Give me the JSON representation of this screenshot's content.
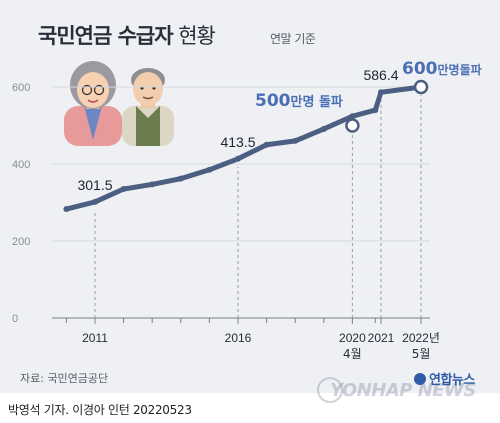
{
  "header": {
    "title_bold": "국민연금 수급자",
    "title_thin": " 현황",
    "subtitle": "연말 기준"
  },
  "footer": {
    "source": "자료: 국민연금공단",
    "credit": "박영석 기자. 이경아 인턴  20220523",
    "logo": "연합뉴스",
    "watermark": "YONHAP NEWS"
  },
  "chart_data": {
    "type": "line",
    "title": "국민연금 수급자 현황",
    "subtitle": "연말 기준",
    "xlabel": "",
    "ylabel": "",
    "ylim": [
      0,
      640
    ],
    "yticks": [
      0,
      200,
      400,
      600
    ],
    "x": [
      2010,
      2011,
      2012,
      2013,
      2014,
      2015,
      2016,
      2017,
      2018,
      2019,
      2020,
      2020.8,
      2021,
      2022.4
    ],
    "values": [
      283,
      301.5,
      335,
      347,
      362,
      385,
      413.5,
      450,
      460,
      491,
      524,
      540,
      586.4,
      600
    ],
    "xticks": [
      {
        "x": 2011,
        "label": "2011"
      },
      {
        "x": 2016,
        "label": "2016"
      },
      {
        "x": 2020,
        "label": "2020",
        "sub": "4월"
      },
      {
        "x": 2021,
        "label": "2021"
      },
      {
        "x": 2022.4,
        "label": "2022년",
        "sub": "5월"
      }
    ],
    "data_labels": [
      {
        "x": 2011,
        "label": "301.5"
      },
      {
        "x": 2016,
        "label": "413.5"
      },
      {
        "x": 2021,
        "label": "586.4"
      }
    ],
    "milestones": [
      {
        "x": 2020,
        "y": 500,
        "num": "500",
        "text": "만명 돌파"
      },
      {
        "x": 2022.4,
        "y": 600,
        "num": "600",
        "text": "만명돌파"
      }
    ],
    "colors": {
      "line": "#4c5e82",
      "milestone_text": "#4a6fb5",
      "panel": "#eef0f4",
      "grid": "#7a7e88"
    }
  }
}
